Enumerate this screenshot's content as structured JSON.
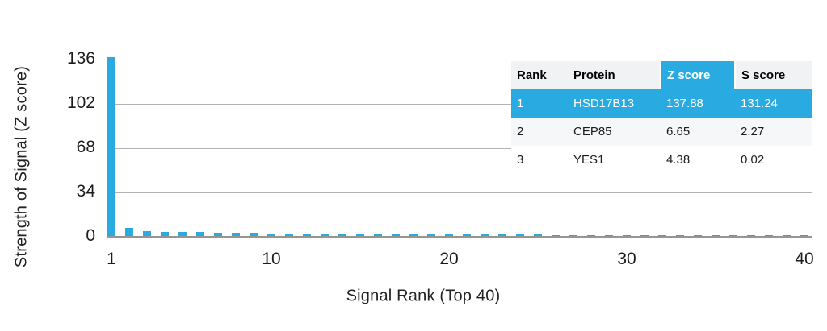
{
  "chart_data": {
    "type": "bar",
    "title": "",
    "xlabel": "Signal Rank (Top 40)",
    "ylabel": "Strength of Signal (Z score)",
    "x": [
      1,
      2,
      3,
      4,
      5,
      6,
      7,
      8,
      9,
      10,
      11,
      12,
      13,
      14,
      15,
      16,
      17,
      18,
      19,
      20,
      21,
      22,
      23,
      24,
      25,
      26,
      27,
      28,
      29,
      30,
      31,
      32,
      33,
      34,
      35,
      36,
      37,
      38,
      39,
      40
    ],
    "values": [
      137.88,
      6.65,
      4.38,
      4.0,
      3.8,
      3.5,
      3.2,
      3.0,
      2.8,
      2.7,
      2.6,
      2.5,
      2.4,
      2.2,
      2.1,
      2.0,
      2.0,
      1.9,
      1.8,
      1.8,
      1.7,
      1.7,
      1.6,
      1.6,
      1.6,
      1.5,
      1.5,
      1.5,
      1.4,
      1.4,
      1.4,
      1.4,
      1.3,
      1.3,
      1.3,
      1.3,
      1.2,
      1.2,
      1.2,
      1.2
    ],
    "yticks": [
      136,
      102,
      68,
      34,
      0
    ],
    "xticks": [
      1,
      10,
      20,
      30,
      40
    ],
    "ylim": [
      0,
      136
    ],
    "xlim": [
      1,
      40
    ],
    "grid": "horizontal",
    "legend": "none",
    "bar_color": "#29ABE2"
  },
  "table": {
    "columns": [
      "Rank",
      "Protein",
      "Z score",
      "S score"
    ],
    "rows": [
      [
        "1",
        "HSD17B13",
        "137.88",
        "131.24"
      ],
      [
        "2",
        "CEP85",
        "6.65",
        "2.27"
      ],
      [
        "3",
        "YES1",
        "4.38",
        "0.02"
      ]
    ],
    "highlight_row_index": 0,
    "highlight_column_index": 2,
    "highlight_color": "#29ABE2"
  },
  "colors": {
    "accent_blue": "#29ABE2",
    "gridline": "#b3b3b3",
    "axis_line": "#999490",
    "text": "#1c1c1c",
    "header_bg": "#f1f2f3",
    "even_row_bg": "#f6f7f8"
  }
}
